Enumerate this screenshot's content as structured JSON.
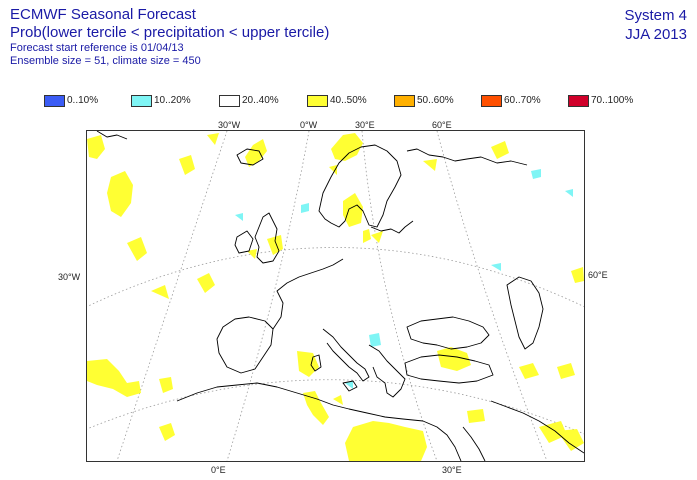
{
  "header": {
    "title": "ECMWF Seasonal Forecast",
    "subtitle": "Prob(lower tercile < precipitation < upper tercile)",
    "forecast_ref": "Forecast start reference is 01/04/13",
    "ensemble": "Ensemble size = 51, climate size = 450"
  },
  "system": {
    "name": "System 4",
    "season": "JJA 2013"
  },
  "legend": {
    "items": [
      {
        "label": "0..10%",
        "color": "#3b5cf5"
      },
      {
        "label": "10..20%",
        "color": "#7ff5f5"
      },
      {
        "label": "20..40%",
        "color": "#ffffff"
      },
      {
        "label": "40..50%",
        "color": "#ffff33"
      },
      {
        "label": "50..60%",
        "color": "#ffb000"
      },
      {
        "label": "60..70%",
        "color": "#ff5000"
      },
      {
        "label": "70..100%",
        "color": "#d0002a"
      }
    ]
  },
  "ticks": {
    "top": [
      "30°W",
      "0°W",
      "30°E",
      "60°E"
    ],
    "bottom": [
      "0°E",
      "30°E"
    ],
    "left": [
      "30°W"
    ],
    "right": [
      "60°E"
    ]
  }
}
